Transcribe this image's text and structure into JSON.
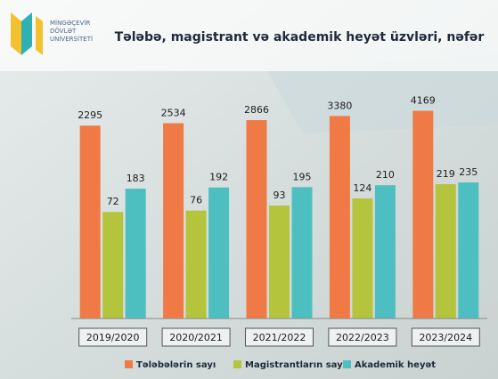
{
  "logo": {
    "lines": [
      "MİNGƏÇEVİR",
      "DÖVLƏT",
      "UNİVERSİTETİ"
    ]
  },
  "chart_data": {
    "type": "bar",
    "title": "Tələbə, magistrant və akademik heyət üzvləri, nəfər",
    "categories": [
      "2019/2020",
      "2020/2021",
      "2021/2022",
      "2022/2023",
      "2023/2024"
    ],
    "series": [
      {
        "name": "Tələbələrin sayı",
        "color": "#f07a45",
        "values": [
          2295,
          2534,
          2866,
          3380,
          4169
        ]
      },
      {
        "name": "Magistrantların sayı",
        "color": "#b4c43c",
        "values": [
          72,
          76,
          93,
          124,
          219
        ]
      },
      {
        "name": "Akademik heyət",
        "color": "#4ebfc0",
        "values": [
          183,
          192,
          195,
          210,
          235
        ]
      }
    ],
    "log_scale": true,
    "ylim": [
      1,
      10000
    ],
    "legend": "bottom"
  }
}
